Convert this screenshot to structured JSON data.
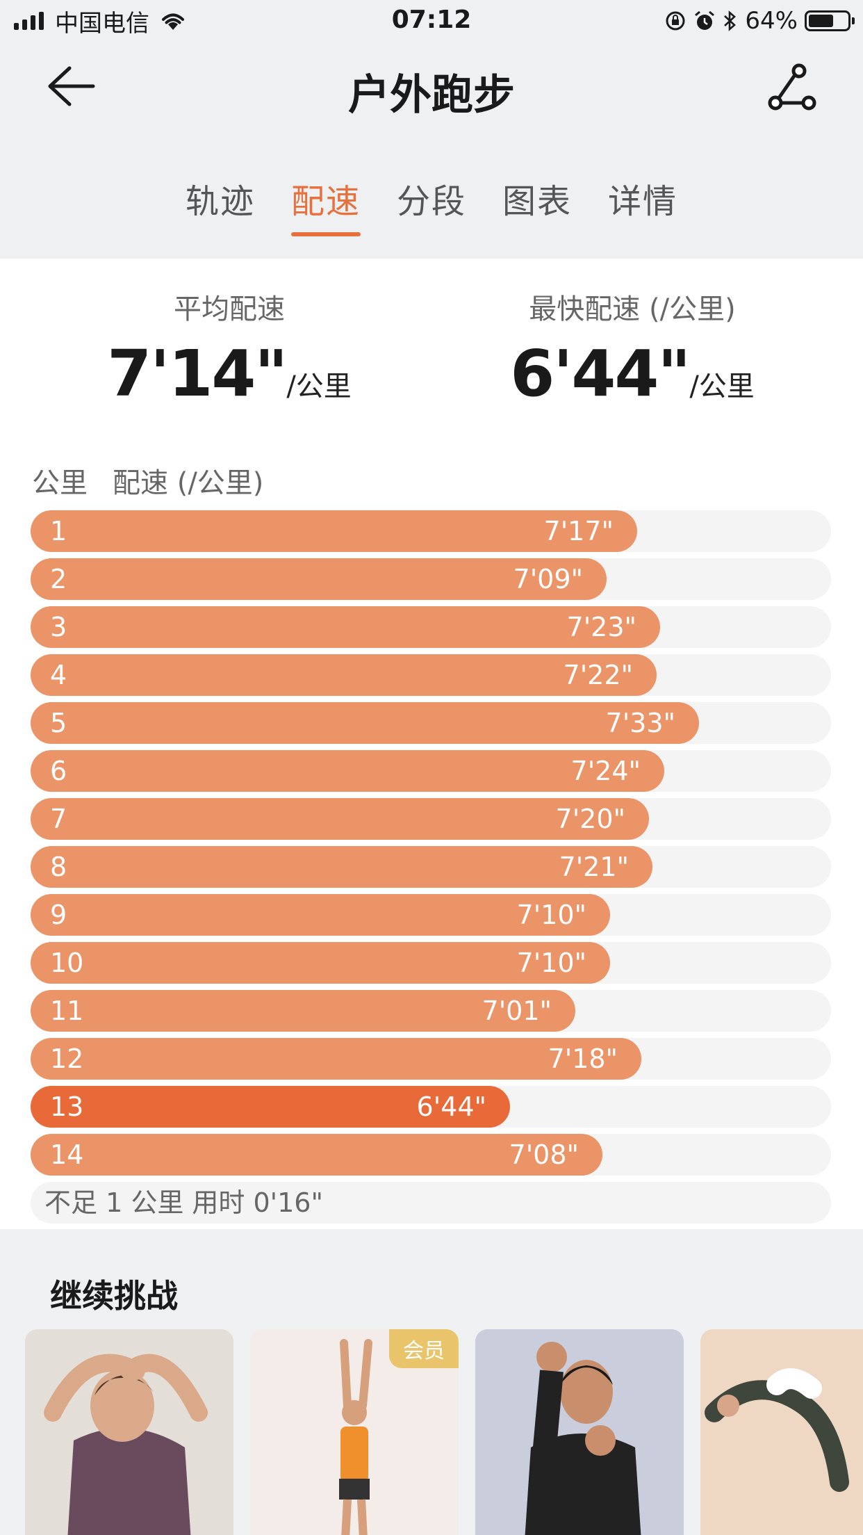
{
  "status_bar": {
    "carrier": "中国电信",
    "time": "07:12",
    "battery_pct": "64%",
    "battery_level": 0.64,
    "icons": [
      "signal-icon",
      "wifi-icon",
      "orientation-lock-icon",
      "alarm-icon",
      "bluetooth-icon",
      "battery-icon"
    ]
  },
  "nav": {
    "title": "户外跑步",
    "back_icon": "back-arrow-icon",
    "route_icon": "route-share-icon"
  },
  "tabs": [
    {
      "label": "轨迹",
      "active": false
    },
    {
      "label": "配速",
      "active": true
    },
    {
      "label": "分段",
      "active": false
    },
    {
      "label": "图表",
      "active": false
    },
    {
      "label": "详情",
      "active": false
    }
  ],
  "summary": {
    "avg_label": "平均配速",
    "avg_value": "7'14\"",
    "avg_unit": "/公里",
    "fast_label": "最快配速 (/公里)",
    "fast_value": "6'44\"",
    "fast_unit": "/公里"
  },
  "table": {
    "col_km": "公里",
    "col_pace": "配速 (/公里)",
    "accent_color": "#eb9467",
    "fastest_color": "#e86a39",
    "rows": [
      {
        "km": "1",
        "pace": "7'17\"",
        "seconds": 437
      },
      {
        "km": "2",
        "pace": "7'09\"",
        "seconds": 429
      },
      {
        "km": "3",
        "pace": "7'23\"",
        "seconds": 443
      },
      {
        "km": "4",
        "pace": "7'22\"",
        "seconds": 442
      },
      {
        "km": "5",
        "pace": "7'33\"",
        "seconds": 453
      },
      {
        "km": "6",
        "pace": "7'24\"",
        "seconds": 444
      },
      {
        "km": "7",
        "pace": "7'20\"",
        "seconds": 440
      },
      {
        "km": "8",
        "pace": "7'21\"",
        "seconds": 441
      },
      {
        "km": "9",
        "pace": "7'10\"",
        "seconds": 430
      },
      {
        "km": "10",
        "pace": "7'10\"",
        "seconds": 430
      },
      {
        "km": "11",
        "pace": "7'01\"",
        "seconds": 421
      },
      {
        "km": "12",
        "pace": "7'18\"",
        "seconds": 438
      },
      {
        "km": "13",
        "pace": "6'44\"",
        "seconds": 404,
        "fastest": true
      },
      {
        "km": "14",
        "pace": "7'08\"",
        "seconds": 428
      }
    ],
    "footer": "不足 1 公里 用时 0'16\""
  },
  "challenge": {
    "title": "继续挑战",
    "cards": [
      {
        "name": "stretch-workout-card",
        "badge": ""
      },
      {
        "name": "full-body-stretch-card",
        "badge": "会员"
      },
      {
        "name": "boxing-workout-card",
        "badge": ""
      },
      {
        "name": "yoga-workout-card",
        "badge": ""
      }
    ]
  }
}
